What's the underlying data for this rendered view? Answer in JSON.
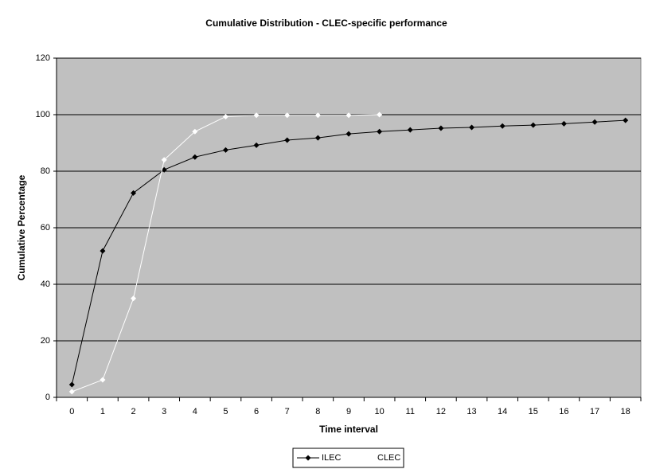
{
  "chart_data": {
    "type": "line",
    "title": "Cumulative Distribution - CLEC-specific performance",
    "x_label": "Time interval",
    "y_label": "Cumulative Percentage",
    "categories": [
      "0",
      "1",
      "2",
      "3",
      "4",
      "5",
      "6",
      "7",
      "8",
      "9",
      "10",
      "11",
      "12",
      "13",
      "14",
      "15",
      "16",
      "17",
      "18"
    ],
    "series": [
      {
        "name": "ILEC",
        "color": "#000000",
        "values": [
          4.5,
          51.8,
          72.3,
          80.5,
          85,
          87.5,
          89.2,
          91,
          91.8,
          93.2,
          94,
          94.6,
          95.2,
          95.5,
          96,
          96.3,
          96.8,
          97.4,
          98
        ]
      },
      {
        "name": "CLEC",
        "color": "#ffffff",
        "values": [
          2,
          6.2,
          35,
          84,
          94,
          99.3,
          99.8,
          99.8,
          99.8,
          99.8,
          100,
          null,
          null,
          null,
          null,
          null,
          null,
          null,
          null
        ]
      }
    ],
    "ylim": [
      0,
      120
    ],
    "yticks": [
      0,
      20,
      40,
      60,
      80,
      100,
      120
    ],
    "grid": true,
    "legend": "bottom"
  }
}
